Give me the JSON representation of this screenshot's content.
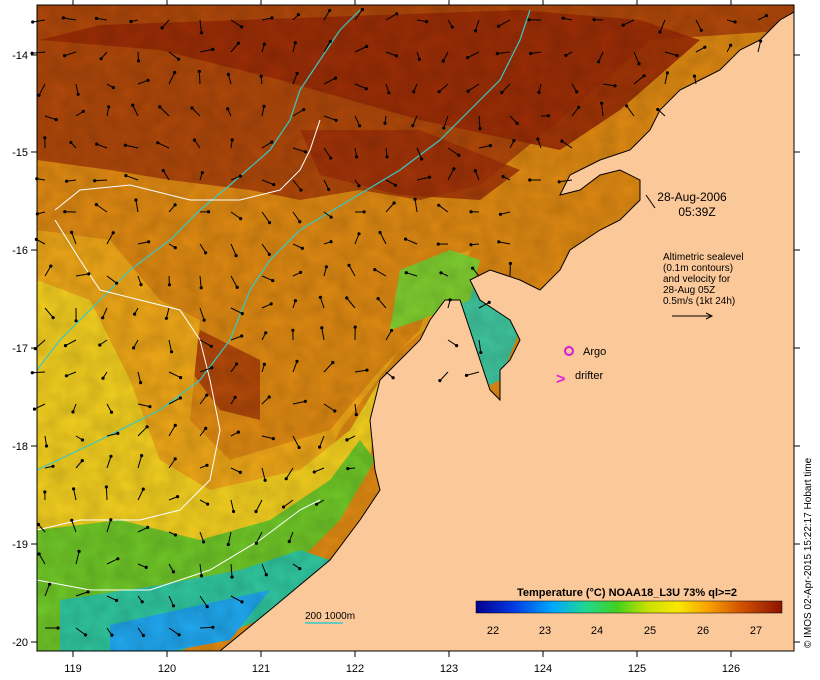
{
  "map": {
    "date_line": "28-Aug-2006",
    "time_line": "05:39Z",
    "legend_lines": [
      "Altimetric sealevel",
      "(0.1m contours)",
      "and velocity for",
      "28-Aug 05Z",
      "0.5m/s (1kt 24h)"
    ],
    "argo_label": "Argo",
    "drifter_label": "drifter",
    "drifter_symbol": ">",
    "depth_label": "200  1000m",
    "credit": "© IMOS 02-Apr-2015 15:22:17 Hobart time",
    "colorbar": {
      "title": "Temperature (°C) NOAA18_L3U 73% ql>=2",
      "ticks": [
        "22",
        "23",
        "24",
        "25",
        "26",
        "27"
      ]
    },
    "lon_ticks": [
      "119",
      "120",
      "121",
      "122",
      "123",
      "124",
      "125",
      "126"
    ],
    "lat_ticks": [
      "-14",
      "-15",
      "-16",
      "-17",
      "-18",
      "-19",
      "-20"
    ],
    "colors": {
      "land": "#fbc89a",
      "coast": "#000000",
      "warm": "#a52a08",
      "cool": "#1e6fe0",
      "argo": "#d81ad8",
      "drifter": "#e020e0",
      "depth_contour": "#37c9c4",
      "sealevel_contour": "#ffffff"
    }
  }
}
